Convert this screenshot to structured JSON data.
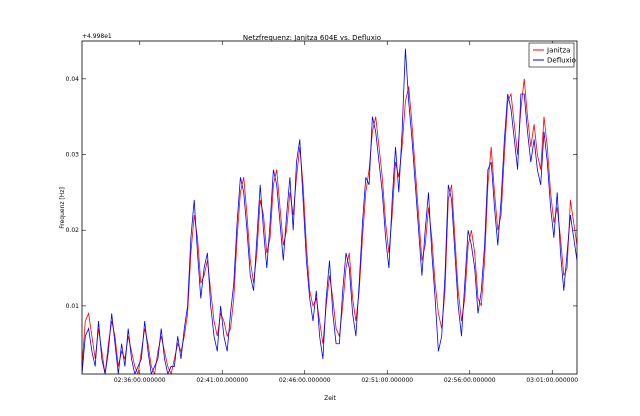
{
  "chart_data": {
    "type": "line",
    "title": "Netzfrequenz: Janitza 604E vs. Defluxio",
    "xlabel": "Zeit",
    "ylabel": "Frequenz [Hz]",
    "offset_label": "+4.998e1",
    "ylim": [
      0.001,
      0.045
    ],
    "xlim_minutes": [
      32.5,
      62.5
    ],
    "legend_position": "top-right",
    "grid": false,
    "x_ticks": [
      {
        "label": "02:36:00.000000",
        "minute": 36
      },
      {
        "label": "02:41:00.000000",
        "minute": 41
      },
      {
        "label": "02:46:00.000000",
        "minute": 46
      },
      {
        "label": "02:51:00.000000",
        "minute": 51
      },
      {
        "label": "02:56:00.000000",
        "minute": 56
      },
      {
        "label": "03:01:00.000000",
        "minute": 61
      }
    ],
    "y_ticks": [
      {
        "label": "0.01",
        "value": 0.01
      },
      {
        "label": "0.02",
        "value": 0.02
      },
      {
        "label": "0.03",
        "value": 0.03
      },
      {
        "label": "0.04",
        "value": 0.04
      }
    ],
    "colors": {
      "Janitza": "#ff0000",
      "Defluxio": "#0000ff"
    },
    "series": [
      {
        "name": "Janitza",
        "points": [
          [
            32.5,
            0.002
          ],
          [
            32.7,
            0.008
          ],
          [
            32.9,
            0.009
          ],
          [
            33.1,
            0.006
          ],
          [
            33.3,
            0.003
          ],
          [
            33.5,
            0.007
          ],
          [
            33.7,
            0.004
          ],
          [
            33.9,
            0.001
          ],
          [
            34.1,
            0.005
          ],
          [
            34.3,
            0.008
          ],
          [
            34.5,
            0.006
          ],
          [
            34.7,
            0.002
          ],
          [
            34.9,
            0.004
          ],
          [
            35.1,
            0.003
          ],
          [
            35.3,
            0.006
          ],
          [
            35.5,
            0.004
          ],
          [
            35.7,
            0.002
          ],
          [
            35.9,
            0.001
          ],
          [
            36.1,
            0.004
          ],
          [
            36.3,
            0.007
          ],
          [
            36.5,
            0.005
          ],
          [
            36.7,
            0.002
          ],
          [
            36.9,
            0.001
          ],
          [
            37.1,
            0.004
          ],
          [
            37.3,
            0.006
          ],
          [
            37.5,
            0.004
          ],
          [
            37.7,
            0.002
          ],
          [
            37.9,
            0.001
          ],
          [
            38.1,
            0.003
          ],
          [
            38.3,
            0.005
          ],
          [
            38.5,
            0.004
          ],
          [
            38.7,
            0.006
          ],
          [
            38.9,
            0.009
          ],
          [
            39.1,
            0.017
          ],
          [
            39.3,
            0.022
          ],
          [
            39.5,
            0.019
          ],
          [
            39.7,
            0.013
          ],
          [
            39.9,
            0.014
          ],
          [
            40.1,
            0.016
          ],
          [
            40.3,
            0.012
          ],
          [
            40.5,
            0.008
          ],
          [
            40.7,
            0.006
          ],
          [
            40.9,
            0.009
          ],
          [
            41.1,
            0.008
          ],
          [
            41.3,
            0.006
          ],
          [
            41.5,
            0.007
          ],
          [
            41.7,
            0.011
          ],
          [
            41.9,
            0.019
          ],
          [
            42.1,
            0.025
          ],
          [
            42.3,
            0.027
          ],
          [
            42.5,
            0.022
          ],
          [
            42.7,
            0.016
          ],
          [
            42.9,
            0.013
          ],
          [
            43.1,
            0.017
          ],
          [
            43.3,
            0.024
          ],
          [
            43.5,
            0.022
          ],
          [
            43.7,
            0.017
          ],
          [
            43.9,
            0.019
          ],
          [
            44.1,
            0.026
          ],
          [
            44.3,
            0.028
          ],
          [
            44.5,
            0.023
          ],
          [
            44.7,
            0.018
          ],
          [
            44.9,
            0.02
          ],
          [
            45.1,
            0.025
          ],
          [
            45.3,
            0.022
          ],
          [
            45.5,
            0.027
          ],
          [
            45.7,
            0.031
          ],
          [
            45.9,
            0.026
          ],
          [
            46.1,
            0.018
          ],
          [
            46.3,
            0.012
          ],
          [
            46.5,
            0.01
          ],
          [
            46.7,
            0.011
          ],
          [
            46.9,
            0.008
          ],
          [
            47.1,
            0.005
          ],
          [
            47.3,
            0.01
          ],
          [
            47.5,
            0.014
          ],
          [
            47.7,
            0.011
          ],
          [
            47.9,
            0.007
          ],
          [
            48.1,
            0.006
          ],
          [
            48.3,
            0.01
          ],
          [
            48.5,
            0.015
          ],
          [
            48.7,
            0.017
          ],
          [
            48.9,
            0.011
          ],
          [
            49.1,
            0.008
          ],
          [
            49.3,
            0.012
          ],
          [
            49.5,
            0.019
          ],
          [
            49.7,
            0.025
          ],
          [
            49.9,
            0.028
          ],
          [
            50.1,
            0.033
          ],
          [
            50.3,
            0.035
          ],
          [
            50.5,
            0.031
          ],
          [
            50.7,
            0.027
          ],
          [
            50.9,
            0.021
          ],
          [
            51.1,
            0.017
          ],
          [
            51.3,
            0.022
          ],
          [
            51.5,
            0.029
          ],
          [
            51.7,
            0.027
          ],
          [
            51.9,
            0.031
          ],
          [
            52.1,
            0.037
          ],
          [
            52.3,
            0.039
          ],
          [
            52.5,
            0.034
          ],
          [
            52.7,
            0.028
          ],
          [
            52.9,
            0.022
          ],
          [
            53.1,
            0.016
          ],
          [
            53.3,
            0.018
          ],
          [
            53.5,
            0.023
          ],
          [
            53.7,
            0.019
          ],
          [
            53.9,
            0.013
          ],
          [
            54.1,
            0.009
          ],
          [
            54.3,
            0.007
          ],
          [
            54.5,
            0.012
          ],
          [
            54.7,
            0.024
          ],
          [
            54.9,
            0.026
          ],
          [
            55.1,
            0.019
          ],
          [
            55.3,
            0.012
          ],
          [
            55.5,
            0.008
          ],
          [
            55.7,
            0.011
          ],
          [
            55.9,
            0.018
          ],
          [
            56.1,
            0.02
          ],
          [
            56.3,
            0.017
          ],
          [
            56.5,
            0.011
          ],
          [
            56.7,
            0.01
          ],
          [
            56.9,
            0.016
          ],
          [
            57.1,
            0.026
          ],
          [
            57.3,
            0.031
          ],
          [
            57.5,
            0.025
          ],
          [
            57.7,
            0.02
          ],
          [
            57.9,
            0.022
          ],
          [
            58.1,
            0.03
          ],
          [
            58.3,
            0.037
          ],
          [
            58.5,
            0.038
          ],
          [
            58.7,
            0.034
          ],
          [
            58.9,
            0.03
          ],
          [
            59.1,
            0.036
          ],
          [
            59.3,
            0.04
          ],
          [
            59.5,
            0.035
          ],
          [
            59.7,
            0.031
          ],
          [
            59.9,
            0.034
          ],
          [
            60.1,
            0.03
          ],
          [
            60.3,
            0.028
          ],
          [
            60.5,
            0.035
          ],
          [
            60.7,
            0.031
          ],
          [
            60.9,
            0.025
          ],
          [
            61.1,
            0.021
          ],
          [
            61.3,
            0.023
          ],
          [
            61.5,
            0.019
          ],
          [
            61.7,
            0.014
          ],
          [
            61.9,
            0.015
          ],
          [
            62.1,
            0.024
          ],
          [
            62.5,
            0.018
          ]
        ]
      },
      {
        "name": "Defluxio",
        "points": [
          [
            32.5,
            0.001
          ],
          [
            32.7,
            0.006
          ],
          [
            32.9,
            0.007
          ],
          [
            33.1,
            0.004
          ],
          [
            33.3,
            0.002
          ],
          [
            33.5,
            0.008
          ],
          [
            33.7,
            0.003
          ],
          [
            33.9,
            0.001
          ],
          [
            34.1,
            0.004
          ],
          [
            34.3,
            0.009
          ],
          [
            34.5,
            0.005
          ],
          [
            34.7,
            0.001
          ],
          [
            34.9,
            0.005
          ],
          [
            35.1,
            0.002
          ],
          [
            35.3,
            0.007
          ],
          [
            35.5,
            0.003
          ],
          [
            35.7,
            0.001
          ],
          [
            35.9,
            0.002
          ],
          [
            36.1,
            0.003
          ],
          [
            36.3,
            0.008
          ],
          [
            36.5,
            0.004
          ],
          [
            36.7,
            0.001
          ],
          [
            36.9,
            0.002
          ],
          [
            37.1,
            0.003
          ],
          [
            37.3,
            0.007
          ],
          [
            37.5,
            0.003
          ],
          [
            37.7,
            0.001
          ],
          [
            37.9,
            0.002
          ],
          [
            38.1,
            0.002
          ],
          [
            38.3,
            0.006
          ],
          [
            38.5,
            0.003
          ],
          [
            38.7,
            0.007
          ],
          [
            38.9,
            0.01
          ],
          [
            39.1,
            0.019
          ],
          [
            39.3,
            0.024
          ],
          [
            39.5,
            0.017
          ],
          [
            39.7,
            0.011
          ],
          [
            39.9,
            0.015
          ],
          [
            40.1,
            0.017
          ],
          [
            40.3,
            0.01
          ],
          [
            40.5,
            0.006
          ],
          [
            40.7,
            0.004
          ],
          [
            40.9,
            0.01
          ],
          [
            41.1,
            0.006
          ],
          [
            41.3,
            0.004
          ],
          [
            41.5,
            0.009
          ],
          [
            41.7,
            0.013
          ],
          [
            41.9,
            0.021
          ],
          [
            42.1,
            0.027
          ],
          [
            42.3,
            0.025
          ],
          [
            42.5,
            0.02
          ],
          [
            42.7,
            0.014
          ],
          [
            42.9,
            0.012
          ],
          [
            43.1,
            0.019
          ],
          [
            43.3,
            0.026
          ],
          [
            43.5,
            0.02
          ],
          [
            43.7,
            0.015
          ],
          [
            43.9,
            0.021
          ],
          [
            44.1,
            0.028
          ],
          [
            44.3,
            0.026
          ],
          [
            44.5,
            0.021
          ],
          [
            44.7,
            0.016
          ],
          [
            44.9,
            0.022
          ],
          [
            45.1,
            0.027
          ],
          [
            45.3,
            0.02
          ],
          [
            45.5,
            0.029
          ],
          [
            45.7,
            0.032
          ],
          [
            45.9,
            0.024
          ],
          [
            46.1,
            0.016
          ],
          [
            46.3,
            0.011
          ],
          [
            46.5,
            0.008
          ],
          [
            46.7,
            0.012
          ],
          [
            46.9,
            0.006
          ],
          [
            47.1,
            0.003
          ],
          [
            47.3,
            0.011
          ],
          [
            47.5,
            0.016
          ],
          [
            47.7,
            0.009
          ],
          [
            47.9,
            0.005
          ],
          [
            48.1,
            0.005
          ],
          [
            48.3,
            0.012
          ],
          [
            48.5,
            0.017
          ],
          [
            48.7,
            0.015
          ],
          [
            48.9,
            0.009
          ],
          [
            49.1,
            0.006
          ],
          [
            49.3,
            0.013
          ],
          [
            49.5,
            0.021
          ],
          [
            49.7,
            0.027
          ],
          [
            49.9,
            0.026
          ],
          [
            50.1,
            0.035
          ],
          [
            50.3,
            0.033
          ],
          [
            50.5,
            0.029
          ],
          [
            50.7,
            0.025
          ],
          [
            50.9,
            0.019
          ],
          [
            51.1,
            0.015
          ],
          [
            51.3,
            0.024
          ],
          [
            51.5,
            0.031
          ],
          [
            51.7,
            0.025
          ],
          [
            51.9,
            0.033
          ],
          [
            52.1,
            0.044
          ],
          [
            52.3,
            0.037
          ],
          [
            52.5,
            0.032
          ],
          [
            52.7,
            0.026
          ],
          [
            52.9,
            0.02
          ],
          [
            53.1,
            0.014
          ],
          [
            53.3,
            0.02
          ],
          [
            53.5,
            0.025
          ],
          [
            53.7,
            0.017
          ],
          [
            53.9,
            0.011
          ],
          [
            54.1,
            0.004
          ],
          [
            54.3,
            0.006
          ],
          [
            54.5,
            0.014
          ],
          [
            54.7,
            0.026
          ],
          [
            54.9,
            0.024
          ],
          [
            55.1,
            0.017
          ],
          [
            55.3,
            0.01
          ],
          [
            55.5,
            0.006
          ],
          [
            55.7,
            0.013
          ],
          [
            55.9,
            0.02
          ],
          [
            56.1,
            0.018
          ],
          [
            56.3,
            0.015
          ],
          [
            56.5,
            0.009
          ],
          [
            56.7,
            0.012
          ],
          [
            56.9,
            0.018
          ],
          [
            57.1,
            0.028
          ],
          [
            57.3,
            0.029
          ],
          [
            57.5,
            0.023
          ],
          [
            57.7,
            0.018
          ],
          [
            57.9,
            0.024
          ],
          [
            58.1,
            0.032
          ],
          [
            58.3,
            0.038
          ],
          [
            58.5,
            0.036
          ],
          [
            58.7,
            0.032
          ],
          [
            58.9,
            0.028
          ],
          [
            59.1,
            0.038
          ],
          [
            59.3,
            0.038
          ],
          [
            59.5,
            0.033
          ],
          [
            59.7,
            0.029
          ],
          [
            59.9,
            0.032
          ],
          [
            60.1,
            0.028
          ],
          [
            60.3,
            0.026
          ],
          [
            60.5,
            0.033
          ],
          [
            60.7,
            0.029
          ],
          [
            60.9,
            0.023
          ],
          [
            61.1,
            0.019
          ],
          [
            61.3,
            0.025
          ],
          [
            61.5,
            0.017
          ],
          [
            61.7,
            0.012
          ],
          [
            61.9,
            0.017
          ],
          [
            62.1,
            0.022
          ],
          [
            62.5,
            0.016
          ]
        ]
      }
    ]
  }
}
